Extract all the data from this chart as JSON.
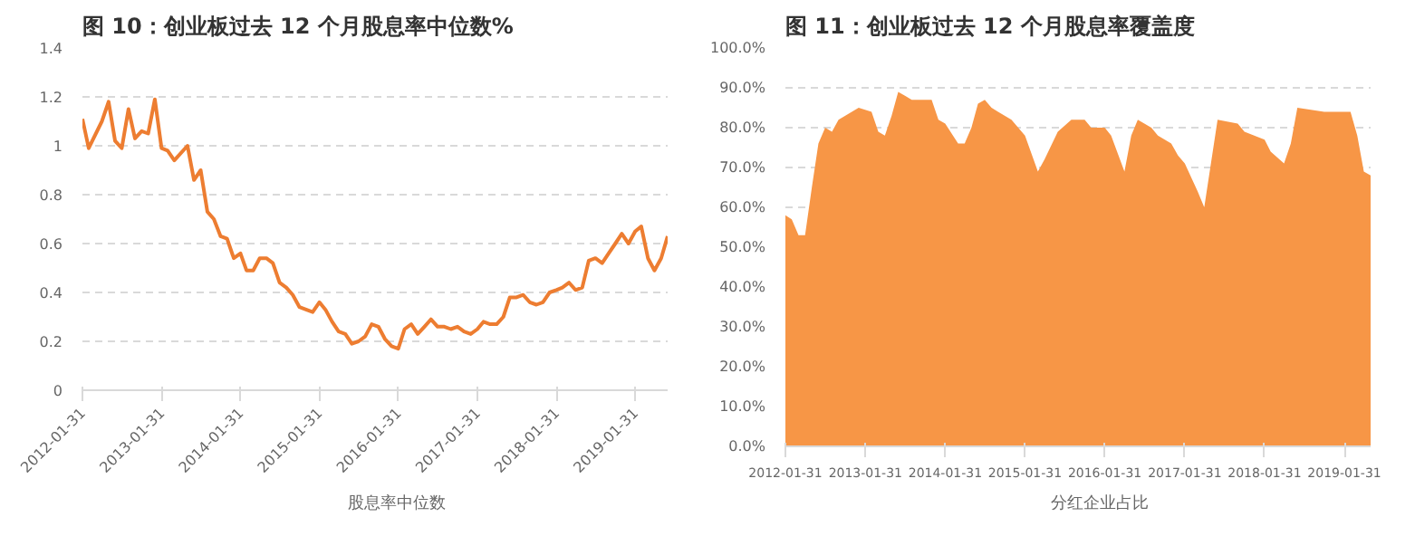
{
  "chart_data": [
    {
      "type": "line",
      "title": "图 10：创业板过去 12 个月股息率中位数%",
      "x": [
        "2012-01-31",
        "2012-02-29",
        "2012-04-30",
        "2012-05-31",
        "2012-06-30",
        "2012-07-31",
        "2012-08-31",
        "2012-09-30",
        "2012-10-31",
        "2012-11-30",
        "2012-12-31",
        "2013-01-31",
        "2013-02-28",
        "2013-03-31",
        "2013-05-31",
        "2013-06-30",
        "2013-07-31",
        "2013-08-31",
        "2013-09-30",
        "2013-10-31",
        "2013-11-30",
        "2013-12-31",
        "2014-01-31",
        "2014-02-28",
        "2014-03-31",
        "2014-04-30",
        "2014-05-31",
        "2014-06-30",
        "2014-07-31",
        "2014-08-31",
        "2014-09-30",
        "2014-10-31",
        "2014-11-30",
        "2014-12-31",
        "2015-01-31",
        "2015-02-28",
        "2015-03-31",
        "2015-04-30",
        "2015-05-31",
        "2015-06-30",
        "2015-07-31",
        "2015-08-31",
        "2015-09-30",
        "2015-10-31",
        "2015-11-30",
        "2015-12-31",
        "2016-01-31",
        "2016-02-29",
        "2016-03-31",
        "2016-04-30",
        "2016-05-31",
        "2016-06-30",
        "2016-07-31",
        "2016-08-31",
        "2016-09-30",
        "2016-10-31",
        "2016-11-30",
        "2016-12-31",
        "2017-01-31",
        "2017-02-28",
        "2017-03-31",
        "2017-04-30",
        "2017-05-31",
        "2017-06-30",
        "2017-07-31",
        "2017-08-31",
        "2017-09-30",
        "2017-10-31",
        "2017-11-30",
        "2017-12-31",
        "2018-01-31",
        "2018-02-28",
        "2018-03-31",
        "2018-04-30",
        "2018-05-31",
        "2018-06-30",
        "2018-07-31",
        "2018-08-31",
        "2018-09-30",
        "2018-10-31",
        "2018-11-30",
        "2018-12-31",
        "2019-01-31",
        "2019-02-28",
        "2019-03-31",
        "2019-04-30",
        "2019-05-31",
        "2019-06-30"
      ],
      "series": [
        {
          "name": "股息率中位数",
          "color": "#ed7d31",
          "values": [
            1.11,
            0.99,
            1.1,
            1.18,
            1.02,
            0.99,
            1.15,
            1.03,
            1.06,
            1.05,
            1.19,
            0.99,
            0.98,
            0.94,
            1.0,
            0.86,
            0.9,
            0.73,
            0.7,
            0.63,
            0.62,
            0.54,
            0.56,
            0.49,
            0.49,
            0.54,
            0.54,
            0.52,
            0.44,
            0.42,
            0.39,
            0.34,
            0.33,
            0.32,
            0.36,
            0.33,
            0.28,
            0.24,
            0.23,
            0.19,
            0.2,
            0.22,
            0.27,
            0.26,
            0.21,
            0.18,
            0.17,
            0.25,
            0.27,
            0.23,
            0.26,
            0.29,
            0.26,
            0.26,
            0.25,
            0.26,
            0.24,
            0.23,
            0.25,
            0.28,
            0.27,
            0.27,
            0.3,
            0.38,
            0.38,
            0.39,
            0.36,
            0.35,
            0.36,
            0.4,
            0.41,
            0.42,
            0.44,
            0.41,
            0.42,
            0.53,
            0.54,
            0.52,
            0.56,
            0.6,
            0.64,
            0.6,
            0.65,
            0.67,
            0.54,
            0.49,
            0.54,
            0.63
          ]
        }
      ],
      "xlim": [
        "2012-01-31",
        "2019-06-30"
      ],
      "xticks": [
        "2012-01-31",
        "2013-01-31",
        "2014-01-31",
        "2015-01-31",
        "2016-01-31",
        "2017-01-31",
        "2018-01-31",
        "2019-01-31"
      ],
      "ylim": [
        0,
        1.4
      ],
      "yticks": [
        0,
        0.2,
        0.4,
        0.6,
        0.8,
        1,
        1.2,
        1.4
      ],
      "grid": "y",
      "legend": "bottom"
    },
    {
      "type": "area",
      "title": "图 11：创业板过去 12 个月股息率覆盖度",
      "x": [
        "2012-01-31",
        "2012-02-29",
        "2012-03-31",
        "2012-04-30",
        "2012-05-31",
        "2012-06-30",
        "2012-07-31",
        "2012-08-31",
        "2012-09-30",
        "2012-12-31",
        "2013-02-28",
        "2013-03-31",
        "2013-04-30",
        "2013-05-31",
        "2013-06-30",
        "2013-07-31",
        "2013-08-31",
        "2013-11-30",
        "2013-12-31",
        "2014-01-31",
        "2014-03-31",
        "2014-04-30",
        "2014-05-31",
        "2014-06-30",
        "2014-07-31",
        "2014-08-31",
        "2014-09-30",
        "2014-11-30",
        "2015-01-31",
        "2015-03-31",
        "2015-04-30",
        "2015-06-30",
        "2015-08-31",
        "2015-10-31",
        "2015-11-30",
        "2016-01-31",
        "2016-02-29",
        "2016-04-30",
        "2016-05-31",
        "2016-06-30",
        "2016-08-31",
        "2016-09-30",
        "2016-11-30",
        "2016-12-31",
        "2017-01-31",
        "2017-03-31",
        "2017-04-30",
        "2017-06-30",
        "2017-09-30",
        "2017-10-31",
        "2018-01-31",
        "2018-02-28",
        "2018-04-30",
        "2018-05-31",
        "2018-06-30",
        "2018-10-31",
        "2019-02-28",
        "2019-03-31",
        "2019-04-30",
        "2019-05-31"
      ],
      "series": [
        {
          "name": "分红企业占比",
          "color": "#f79646",
          "values": [
            58,
            57,
            53,
            53,
            65,
            76,
            80,
            79,
            82,
            85,
            84,
            79,
            78,
            83,
            89,
            88,
            87,
            87,
            82,
            81,
            76,
            76,
            80,
            86,
            87,
            85,
            84,
            82,
            78,
            69,
            72,
            79,
            82,
            82,
            80,
            80,
            78,
            69,
            78,
            82,
            80,
            78,
            76,
            73,
            71,
            64,
            60,
            82,
            81,
            79,
            77,
            74,
            71,
            76,
            85,
            84,
            84,
            78,
            69,
            68
          ]
        }
      ],
      "xlim": [
        "2012-01-31",
        "2019-05-31"
      ],
      "xticks": [
        "2012-01-31",
        "2013-01-31",
        "2014-01-31",
        "2015-01-31",
        "2016-01-31",
        "2017-01-31",
        "2018-01-31",
        "2019-01-31"
      ],
      "ylim": [
        0,
        100
      ],
      "yticks": [
        {
          "value": 0,
          "label": "0.0%"
        },
        {
          "value": 10,
          "label": "10.0%"
        },
        {
          "value": 20,
          "label": "20.0%"
        },
        {
          "value": 30,
          "label": "30.0%"
        },
        {
          "value": 40,
          "label": "40.0%"
        },
        {
          "value": 50,
          "label": "50.0%"
        },
        {
          "value": 60,
          "label": "60.0%"
        },
        {
          "value": 70,
          "label": "70.0%"
        },
        {
          "value": 80,
          "label": "80.0%"
        },
        {
          "value": 90,
          "label": "90.0%"
        },
        {
          "value": 100,
          "label": "100.0%"
        }
      ],
      "grid": "y",
      "legend": "bottom"
    }
  ]
}
